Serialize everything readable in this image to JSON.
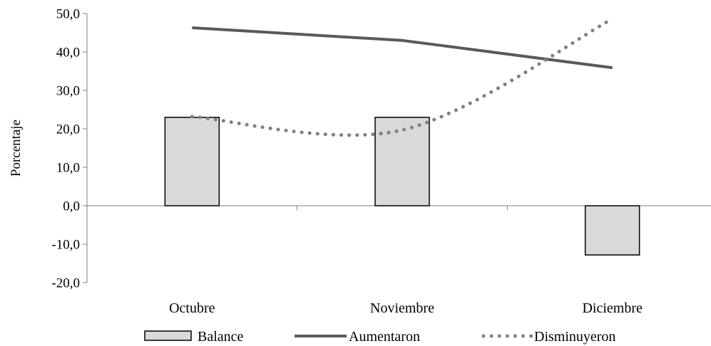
{
  "chart_data": {
    "type": "bar",
    "categories": [
      "Octubre",
      "Noviembre",
      "Diciembre"
    ],
    "ylabel": "Porcentaje",
    "xlabel": "",
    "ylim": [
      -20,
      50
    ],
    "yticks": [
      50,
      40,
      30,
      20,
      10,
      0,
      -10,
      -20
    ],
    "ytick_labels": [
      "50,0",
      "40,0",
      "30,0",
      "20,0",
      "10,0",
      "0,0",
      "-10,0",
      "-20,0"
    ],
    "grid": false,
    "legend_position": "bottom",
    "series": [
      {
        "name": "Balance",
        "kind": "bar",
        "values": [
          23.0,
          23.0,
          -12.8
        ],
        "color": "#d9d9d9",
        "stroke": "#000000"
      },
      {
        "name": "Aumentaron",
        "kind": "line",
        "style": "solid",
        "values": [
          46.3,
          43.0,
          35.9
        ],
        "color": "#595959"
      },
      {
        "name": "Disminuyeron",
        "kind": "line",
        "style": "dotted",
        "values": [
          23.2,
          19.7,
          48.6
        ],
        "color": "#808080"
      }
    ]
  }
}
